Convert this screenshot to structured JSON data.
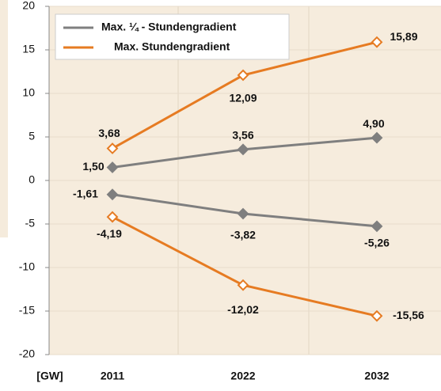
{
  "chart_data": {
    "type": "line",
    "x_label": "[GW]",
    "categories": [
      "2011",
      "2022",
      "2032"
    ],
    "series": [
      {
        "name": "Max. ¼ - Stundengradient",
        "color": "#7f7f7f",
        "values": [
          1.5,
          3.56,
          4.9
        ],
        "value_labels": [
          "1,50",
          "3,56",
          "4,90"
        ]
      },
      {
        "name": "Max. Stundengradient",
        "color": "#e67b22",
        "values": [
          3.68,
          12.09,
          15.89
        ],
        "value_labels": [
          "3,68",
          "12,09",
          "15,89"
        ]
      },
      {
        "color": "#7f7f7f",
        "values": [
          -1.61,
          -3.82,
          -5.26
        ],
        "value_labels": [
          "-1,61",
          "-3,82",
          "-5,26"
        ]
      },
      {
        "color": "#e67b22",
        "values": [
          -4.19,
          -12.02,
          -15.56
        ],
        "value_labels": [
          "-4,19",
          "-12,02",
          "-15,56"
        ]
      }
    ],
    "ylim": [
      -20,
      20
    ],
    "yticks": [
      -20,
      -15,
      -10,
      -5,
      0,
      5,
      10,
      15,
      20
    ],
    "grid": true
  }
}
